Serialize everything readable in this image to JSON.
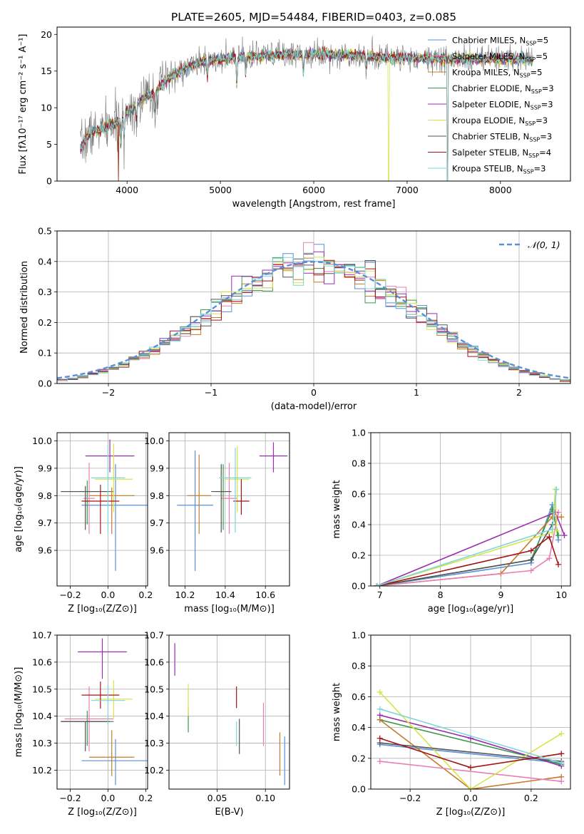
{
  "figure": {
    "title": "PLATE=2605, MJD=54484, FIBERID=0403, z=0.085"
  },
  "chart_data": [
    {
      "id": "spectrum",
      "type": "line",
      "title": "PLATE=2605, MJD=54484, FIBERID=0403, z=0.085",
      "xlabel": "wavelength [Angstrom, rest frame]",
      "ylabel": "Flux [fλ10⁻¹⁷ erg cm⁻² s⁻¹ A⁻¹]",
      "xlim": [
        3250,
        8750
      ],
      "ylim": [
        0,
        21
      ],
      "xticks": [
        "4000",
        "5000",
        "6000",
        "7000",
        "8000"
      ],
      "yticks": [
        "0",
        "5",
        "10",
        "15",
        "20"
      ],
      "grid": false,
      "legend_position": "right",
      "continuum_x": [
        3500,
        3600,
        3700,
        3800,
        3900,
        4000,
        4100,
        4200,
        4300,
        4400,
        4500,
        4600,
        4700,
        4800,
        4900,
        5000,
        5200,
        5400,
        5600,
        5800,
        6000,
        6200,
        6400,
        6600,
        6800,
        7000,
        7200,
        7400
      ],
      "continuum_y": [
        4.5,
        6.5,
        7.0,
        7.5,
        8.0,
        9.5,
        10.5,
        11.5,
        12.0,
        13.5,
        14.5,
        15.2,
        15.8,
        16.2,
        16.5,
        16.6,
        16.9,
        17.0,
        17.2,
        17.3,
        17.3,
        17.3,
        17.2,
        17.0,
        16.9,
        16.8,
        16.7,
        16.6
      ],
      "series": [
        {
          "name": "Chabrier MILES, N_SSP=5",
          "label": "Chabrier MILES, N",
          "sub": "SSP",
          "suffix": "=5",
          "color": "#5b8fd9"
        },
        {
          "name": "Salpeter MILES, N_SSP=5",
          "label": "Salpeter MILES, N",
          "sub": "SSP",
          "suffix": "=5",
          "color": "#e87fb3"
        },
        {
          "name": "Kroupa MILES, N_SSP=5",
          "label": "Kroupa MILES, N",
          "sub": "SSP",
          "suffix": "=5",
          "color": "#c47a2c"
        },
        {
          "name": "Chabrier ELODIE, N_SSP=3",
          "label": "Chabrier ELODIE, N",
          "sub": "SSP",
          "suffix": "=3",
          "color": "#3a9a4a"
        },
        {
          "name": "Salpeter ELODIE, N_SSP=3",
          "label": "Salpeter ELODIE, N",
          "sub": "SSP",
          "suffix": "=3",
          "color": "#9a2db0"
        },
        {
          "name": "Kroupa ELODIE, N_SSP=3",
          "label": "Kroupa ELODIE, N",
          "sub": "SSP",
          "suffix": "=3",
          "color": "#d8e34a"
        },
        {
          "name": "Chabrier STELIB, N_SSP=3",
          "label": "Chabrier STELIB, N",
          "sub": "SSP",
          "suffix": "=3",
          "color": "#555555"
        },
        {
          "name": "Salpeter STELIB, N_SSP=4",
          "label": "Salpeter STELIB, N",
          "sub": "SSP",
          "suffix": "=4",
          "color": "#a31515"
        },
        {
          "name": "Kroupa STELIB, N_SSP=3",
          "label": "Kroupa STELIB, N",
          "sub": "SSP",
          "suffix": "=3",
          "color": "#7fd6d8"
        }
      ]
    },
    {
      "id": "residuals",
      "type": "step",
      "xlabel": "(data-model)/error",
      "ylabel": "Normed distribution",
      "xlim": [
        -2.5,
        2.5
      ],
      "ylim": [
        0,
        0.5
      ],
      "xticks": [
        "−2",
        "−1",
        "0",
        "1",
        "2"
      ],
      "yticks": [
        "0.0",
        "0.1",
        "0.2",
        "0.3",
        "0.4",
        "0.5"
      ],
      "grid": true,
      "legend": "𝒩(0, 1)",
      "legend_position": "top-right",
      "bin_width": 0.1,
      "curve": "normal(0,1)"
    },
    {
      "id": "age-vs-Z",
      "type": "errorbar",
      "xlabel": "Z [log₁₀(Z/Z⊙)]",
      "ylabel": "age  [log₁₀(age/yr)]",
      "xlim": [
        -0.27,
        0.21
      ],
      "ylim": [
        9.47,
        10.03
      ],
      "xticks": [
        "−0.2",
        "0.0",
        "0.2"
      ],
      "yticks": [
        "9.6",
        "9.7",
        "9.8",
        "9.9",
        "10.0"
      ],
      "grid": true,
      "points": [
        {
          "color": "#5b8fd9",
          "x": 0.04,
          "xerr": 0.18,
          "y": 9.765,
          "yerr": [
            0.24,
            0.15
          ]
        },
        {
          "color": "#3a9a4a",
          "x": -0.11,
          "xerr": 0.14,
          "y": 9.815,
          "yerr": [
            0.12,
            0.04
          ]
        },
        {
          "color": "#c47a2c",
          "x": 0.02,
          "xerr": 0.12,
          "y": 9.8,
          "yerr": [
            0.14,
            0.03
          ]
        },
        {
          "color": "#e87fb3",
          "x": -0.1,
          "xerr": 0.03,
          "y": 9.79,
          "yerr": [
            0.13,
            0.13
          ]
        },
        {
          "color": "#9a2db0",
          "x": 0.01,
          "xerr": 0.13,
          "y": 9.945,
          "yerr": [
            0.06,
            0.06
          ]
        },
        {
          "color": "#d8e34a",
          "x": 0.03,
          "xerr": 0.1,
          "y": 9.86,
          "yerr": [
            0.12,
            0.13
          ]
        },
        {
          "color": "#555555",
          "x": -0.12,
          "xerr": 0.13,
          "y": 9.815,
          "yerr": [
            0.14,
            0.02
          ]
        },
        {
          "color": "#a31515",
          "x": -0.04,
          "xerr": 0.1,
          "y": 9.78,
          "yerr": [
            0.12,
            0.06
          ]
        },
        {
          "color": "#7fd6d8",
          "x": 0.0,
          "xerr": 0.09,
          "y": 9.865,
          "yerr": [
            0.2,
            0.12
          ]
        }
      ]
    },
    {
      "id": "age-vs-mass",
      "type": "errorbar",
      "xlabel": "mass [log₁₀(M/M⊙)]",
      "ylabel": "",
      "xlim": [
        10.12,
        10.72
      ],
      "ylim": [
        9.47,
        10.03
      ],
      "xticks": [
        "10.2",
        "10.4",
        "10.6"
      ],
      "yticks": [
        "9.6",
        "9.7",
        "9.8",
        "9.9",
        "10.0"
      ],
      "grid": true,
      "points": [
        {
          "color": "#5b8fd9",
          "x": 10.25,
          "xerr": 0.09,
          "y": 9.765,
          "yerr": [
            0.24,
            0.2
          ]
        },
        {
          "color": "#3a9a4a",
          "x": 10.39,
          "xerr": 0.04,
          "y": 9.815,
          "yerr": [
            0.14,
            0.1
          ]
        },
        {
          "color": "#c47a2c",
          "x": 10.27,
          "xerr": 0.06,
          "y": 9.8,
          "yerr": [
            0.14,
            0.15
          ]
        },
        {
          "color": "#e87fb3",
          "x": 10.42,
          "xerr": 0.04,
          "y": 9.79,
          "yerr": [
            0.13,
            0.13
          ]
        },
        {
          "color": "#9a2db0",
          "x": 10.64,
          "xerr": 0.07,
          "y": 9.945,
          "yerr": [
            0.06,
            0.05
          ]
        },
        {
          "color": "#d8e34a",
          "x": 10.46,
          "xerr": 0.06,
          "y": 9.86,
          "yerr": [
            0.12,
            0.12
          ]
        },
        {
          "color": "#555555",
          "x": 10.38,
          "xerr": 0.05,
          "y": 9.815,
          "yerr": [
            0.15,
            0.1
          ]
        },
        {
          "color": "#a31515",
          "x": 10.48,
          "xerr": 0.04,
          "y": 9.78,
          "yerr": [
            0.05,
            0.08
          ]
        },
        {
          "color": "#7fd6d8",
          "x": 10.45,
          "xerr": 0.08,
          "y": 9.865,
          "yerr": [
            0.2,
            0.11
          ]
        }
      ]
    },
    {
      "id": "weight-vs-age",
      "type": "line",
      "xlabel": "age  [log₁₀(age/yr)]",
      "ylabel": "mass weight",
      "xlim": [
        6.85,
        10.15
      ],
      "ylim": [
        0,
        1
      ],
      "xticks": [
        "7",
        "8",
        "9",
        "10"
      ],
      "yticks": [
        "0.0",
        "0.2",
        "0.4",
        "0.6",
        "0.8",
        "1.0"
      ],
      "grid": true,
      "series": [
        {
          "color": "#5b8fd9",
          "x": [
            6.95,
            9.5,
            9.85,
            9.95
          ],
          "y": [
            0.0,
            0.15,
            0.53,
            0.3
          ]
        },
        {
          "color": "#3a9a4a",
          "x": [
            6.95,
            9.5,
            9.85,
            9.95
          ],
          "y": [
            0.0,
            0.17,
            0.5,
            0.33
          ]
        },
        {
          "color": "#c47a2c",
          "x": [
            6.95,
            9.0,
            9.85,
            10.0
          ],
          "y": [
            0.0,
            0.08,
            0.45,
            0.45
          ]
        },
        {
          "color": "#e87fb3",
          "x": [
            6.95,
            9.5,
            9.8,
            9.95
          ],
          "y": [
            0.0,
            0.1,
            0.18,
            0.48
          ]
        },
        {
          "color": "#9a2db0",
          "x": [
            6.95,
            9.9,
            10.05
          ],
          "y": [
            0.0,
            0.48,
            0.33
          ]
        },
        {
          "color": "#d8e34a",
          "x": [
            6.95,
            9.85,
            9.9,
            9.92
          ],
          "y": [
            0.0,
            0.35,
            0.63,
            0.36
          ]
        },
        {
          "color": "#555555",
          "x": [
            6.95,
            9.5,
            9.85
          ],
          "y": [
            0.0,
            0.17,
            0.4
          ]
        },
        {
          "color": "#a31515",
          "x": [
            6.95,
            9.5,
            9.8,
            9.95
          ],
          "y": [
            0.0,
            0.23,
            0.32,
            0.14
          ]
        },
        {
          "color": "#7fd6d8",
          "x": [
            6.95,
            9.85,
            9.92
          ],
          "y": [
            0.0,
            0.37,
            0.63
          ]
        }
      ]
    },
    {
      "id": "mass-vs-Z",
      "type": "errorbar",
      "xlabel": "Z [log₁₀(Z/Z⊙)]",
      "ylabel": "mass [log₁₀(M/M⊙)]",
      "xlim": [
        -0.27,
        0.21
      ],
      "ylim": [
        10.13,
        10.7
      ],
      "xticks": [
        "−0.2",
        "0.0",
        "0.2"
      ],
      "yticks": [
        "10.2",
        "10.3",
        "10.4",
        "10.5",
        "10.6",
        "10.7"
      ],
      "grid": true,
      "points": [
        {
          "color": "#5b8fd9",
          "x": 0.04,
          "xerr": 0.18,
          "y": 10.235,
          "yerr": [
            0.09,
            0.08
          ]
        },
        {
          "color": "#3a9a4a",
          "x": -0.11,
          "xerr": 0.14,
          "y": 10.38,
          "yerr": [
            0.09,
            0.04
          ]
        },
        {
          "color": "#c47a2c",
          "x": 0.02,
          "xerr": 0.12,
          "y": 10.248,
          "yerr": [
            0.07,
            0.1
          ]
        },
        {
          "color": "#e87fb3",
          "x": -0.1,
          "xerr": 0.13,
          "y": 10.39,
          "yerr": [
            0.12,
            0.12
          ]
        },
        {
          "color": "#9a2db0",
          "x": -0.03,
          "xerr": 0.13,
          "y": 10.638,
          "yerr": [
            0.1,
            0.05
          ]
        },
        {
          "color": "#d8e34a",
          "x": 0.03,
          "xerr": 0.1,
          "y": 10.463,
          "yerr": [
            0.07,
            0.07
          ]
        },
        {
          "color": "#555555",
          "x": -0.12,
          "xerr": 0.13,
          "y": 10.38,
          "yerr": [
            0.11,
            0.0
          ]
        },
        {
          "color": "#a31515",
          "x": -0.04,
          "xerr": 0.1,
          "y": 10.478,
          "yerr": [
            0.05,
            0.05
          ]
        },
        {
          "color": "#7fd6d8",
          "x": 0.0,
          "xerr": 0.09,
          "y": 10.458,
          "yerr": [
            0.09,
            0.06
          ]
        }
      ]
    },
    {
      "id": "mass-vs-ebv",
      "type": "errorbar",
      "xlabel": "E(B-V)",
      "ylabel": "",
      "xlim": [
        0.0,
        0.125
      ],
      "ylim": [
        10.13,
        10.7
      ],
      "xticks": [
        "0.05",
        "0.10"
      ],
      "yticks": [
        "10.2",
        "10.3",
        "10.4",
        "10.5",
        "10.6",
        "10.7"
      ],
      "grid": true,
      "points": [
        {
          "color": "#5b8fd9",
          "x": 0.12,
          "y": 10.235,
          "yerr": [
            0.09,
            0.09
          ]
        },
        {
          "color": "#3a9a4a",
          "x": 0.02,
          "y": 10.38,
          "yerr": [
            0.04,
            0.05
          ]
        },
        {
          "color": "#c47a2c",
          "x": 0.115,
          "y": 10.25,
          "yerr": [
            0.07,
            0.09
          ]
        },
        {
          "color": "#e87fb3",
          "x": 0.098,
          "y": 10.39,
          "yerr": [
            0.1,
            0.06
          ]
        },
        {
          "color": "#9a2db0",
          "x": 0.006,
          "y": 10.61,
          "yerr": [
            0.06,
            0.06
          ]
        },
        {
          "color": "#d8e34a",
          "x": 0.02,
          "y": 10.46,
          "yerr": [
            0.06,
            0.06
          ]
        },
        {
          "color": "#555555",
          "x": 0.073,
          "y": 10.3,
          "yerr": [
            0.04,
            0.09
          ]
        },
        {
          "color": "#a31515",
          "x": 0.07,
          "y": 10.47,
          "yerr": [
            0.04,
            0.04
          ]
        },
        {
          "color": "#7fd6d8",
          "x": 0.07,
          "y": 10.33,
          "yerr": [
            0.04,
            0.05
          ]
        }
      ]
    },
    {
      "id": "weight-vs-Z",
      "type": "line",
      "xlabel": "Z [log₁₀(Z/Z⊙)]",
      "ylabel": "mass weight",
      "xlim": [
        -0.33,
        0.33
      ],
      "ylim": [
        0,
        1
      ],
      "xticks": [
        "−0.2",
        "0.0",
        "0.2"
      ],
      "yticks": [
        "0.0",
        "0.2",
        "0.4",
        "0.6",
        "0.8",
        "1.0"
      ],
      "grid": true,
      "series": [
        {
          "color": "#5b8fd9",
          "x": [
            -0.3,
            0.3
          ],
          "y": [
            0.29,
            0.17
          ]
        },
        {
          "color": "#3a9a4a",
          "x": [
            -0.3,
            0.3
          ],
          "y": [
            0.45,
            0.16
          ]
        },
        {
          "color": "#c47a2c",
          "x": [
            -0.3,
            0.0,
            0.3
          ],
          "y": [
            0.45,
            0.0,
            0.08
          ]
        },
        {
          "color": "#e87fb3",
          "x": [
            -0.3,
            0.3
          ],
          "y": [
            0.18,
            0.05
          ]
        },
        {
          "color": "#9a2db0",
          "x": [
            -0.3,
            0.0,
            0.3
          ],
          "y": [
            0.48,
            0.33,
            0.15
          ]
        },
        {
          "color": "#d8e34a",
          "x": [
            -0.3,
            0.0,
            0.3
          ],
          "y": [
            0.63,
            0.0,
            0.36
          ]
        },
        {
          "color": "#555555",
          "x": [
            -0.3,
            0.3
          ],
          "y": [
            0.3,
            0.18
          ]
        },
        {
          "color": "#a31515",
          "x": [
            -0.3,
            0.0,
            0.3
          ],
          "y": [
            0.33,
            0.14,
            0.23
          ]
        },
        {
          "color": "#7fd6d8",
          "x": [
            -0.3,
            0.3
          ],
          "y": [
            0.52,
            0.17
          ]
        }
      ]
    }
  ]
}
